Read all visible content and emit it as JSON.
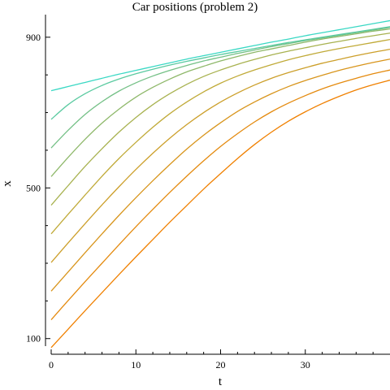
{
  "chart_data": {
    "type": "line",
    "title": "Car positions (problem 2)",
    "xlabel": "t",
    "ylabel": "x",
    "xlim": [
      0,
      40
    ],
    "ylim": [
      80,
      960
    ],
    "x_ticks": [
      0,
      10,
      20,
      30
    ],
    "x_minor_step": 2,
    "y_ticks": [
      100,
      500,
      900
    ],
    "y_minor_step": 100,
    "grid": false,
    "legend": "none",
    "x": [
      0,
      2,
      4,
      6,
      8,
      10,
      12,
      14,
      16,
      18,
      20,
      22,
      24,
      26,
      28,
      30,
      32,
      34,
      36,
      38,
      40
    ],
    "series": [
      {
        "color": "#f08000",
        "values": [
          76,
          125,
          174,
          222,
          270,
          317,
          363,
          409,
          453,
          497,
          538,
          578,
          615,
          648,
          677,
          702,
          724,
          743,
          760,
          774,
          786
        ]
      },
      {
        "color": "#e48a0e",
        "values": [
          150,
          201,
          251,
          300,
          349,
          397,
          443,
          488,
          531,
          572,
          610,
          644,
          675,
          702,
          725,
          745,
          763,
          778,
          791,
          803,
          813
        ]
      },
      {
        "color": "#d8951c",
        "values": [
          226,
          277,
          328,
          378,
          427,
          474,
          519,
          562,
          603,
          640,
          673,
          703,
          728,
          750,
          769,
          785,
          799,
          812,
          823,
          833,
          842
        ]
      },
      {
        "color": "#cc9f2a",
        "values": [
          302,
          354,
          405,
          455,
          503,
          549,
          592,
          632,
          668,
          700,
          728,
          752,
          773,
          791,
          806,
          819,
          831,
          841,
          851,
          860,
          868
        ]
      },
      {
        "color": "#c0aa38",
        "values": [
          378,
          430,
          481,
          531,
          578,
          621,
          661,
          697,
          728,
          755,
          778,
          797,
          813,
          827,
          840,
          851,
          861,
          870,
          878,
          886,
          894
        ]
      },
      {
        "color": "#a8b250",
        "values": [
          454,
          506,
          557,
          604,
          648,
          687,
          721,
          750,
          775,
          796,
          813,
          828,
          841,
          853,
          863,
          872,
          881,
          889,
          897,
          904,
          911
        ]
      },
      {
        "color": "#8eb86a",
        "values": [
          530,
          581,
          629,
          672,
          709,
          741,
          767,
          789,
          808,
          823,
          837,
          849,
          860,
          869,
          878,
          887,
          895,
          902,
          909,
          916,
          922
        ]
      },
      {
        "color": "#74c086",
        "values": [
          606,
          653,
          695,
          729,
          757,
          779,
          797,
          812,
          825,
          837,
          847,
          857,
          866,
          875,
          883,
          891,
          898,
          905,
          912,
          919,
          926
        ]
      },
      {
        "color": "#5acaa0",
        "values": [
          682,
          721,
          750,
          772,
          789,
          803,
          815,
          826,
          836,
          845,
          854,
          862,
          870,
          878,
          886,
          893,
          900,
          907,
          914,
          921,
          928
        ]
      },
      {
        "color": "#3ad8c4",
        "values": [
          758,
          769,
          780,
          791,
          802,
          812,
          822,
          832,
          842,
          851,
          860,
          869,
          878,
          887,
          895,
          904,
          912,
          920,
          928,
          936,
          944
        ]
      }
    ]
  }
}
